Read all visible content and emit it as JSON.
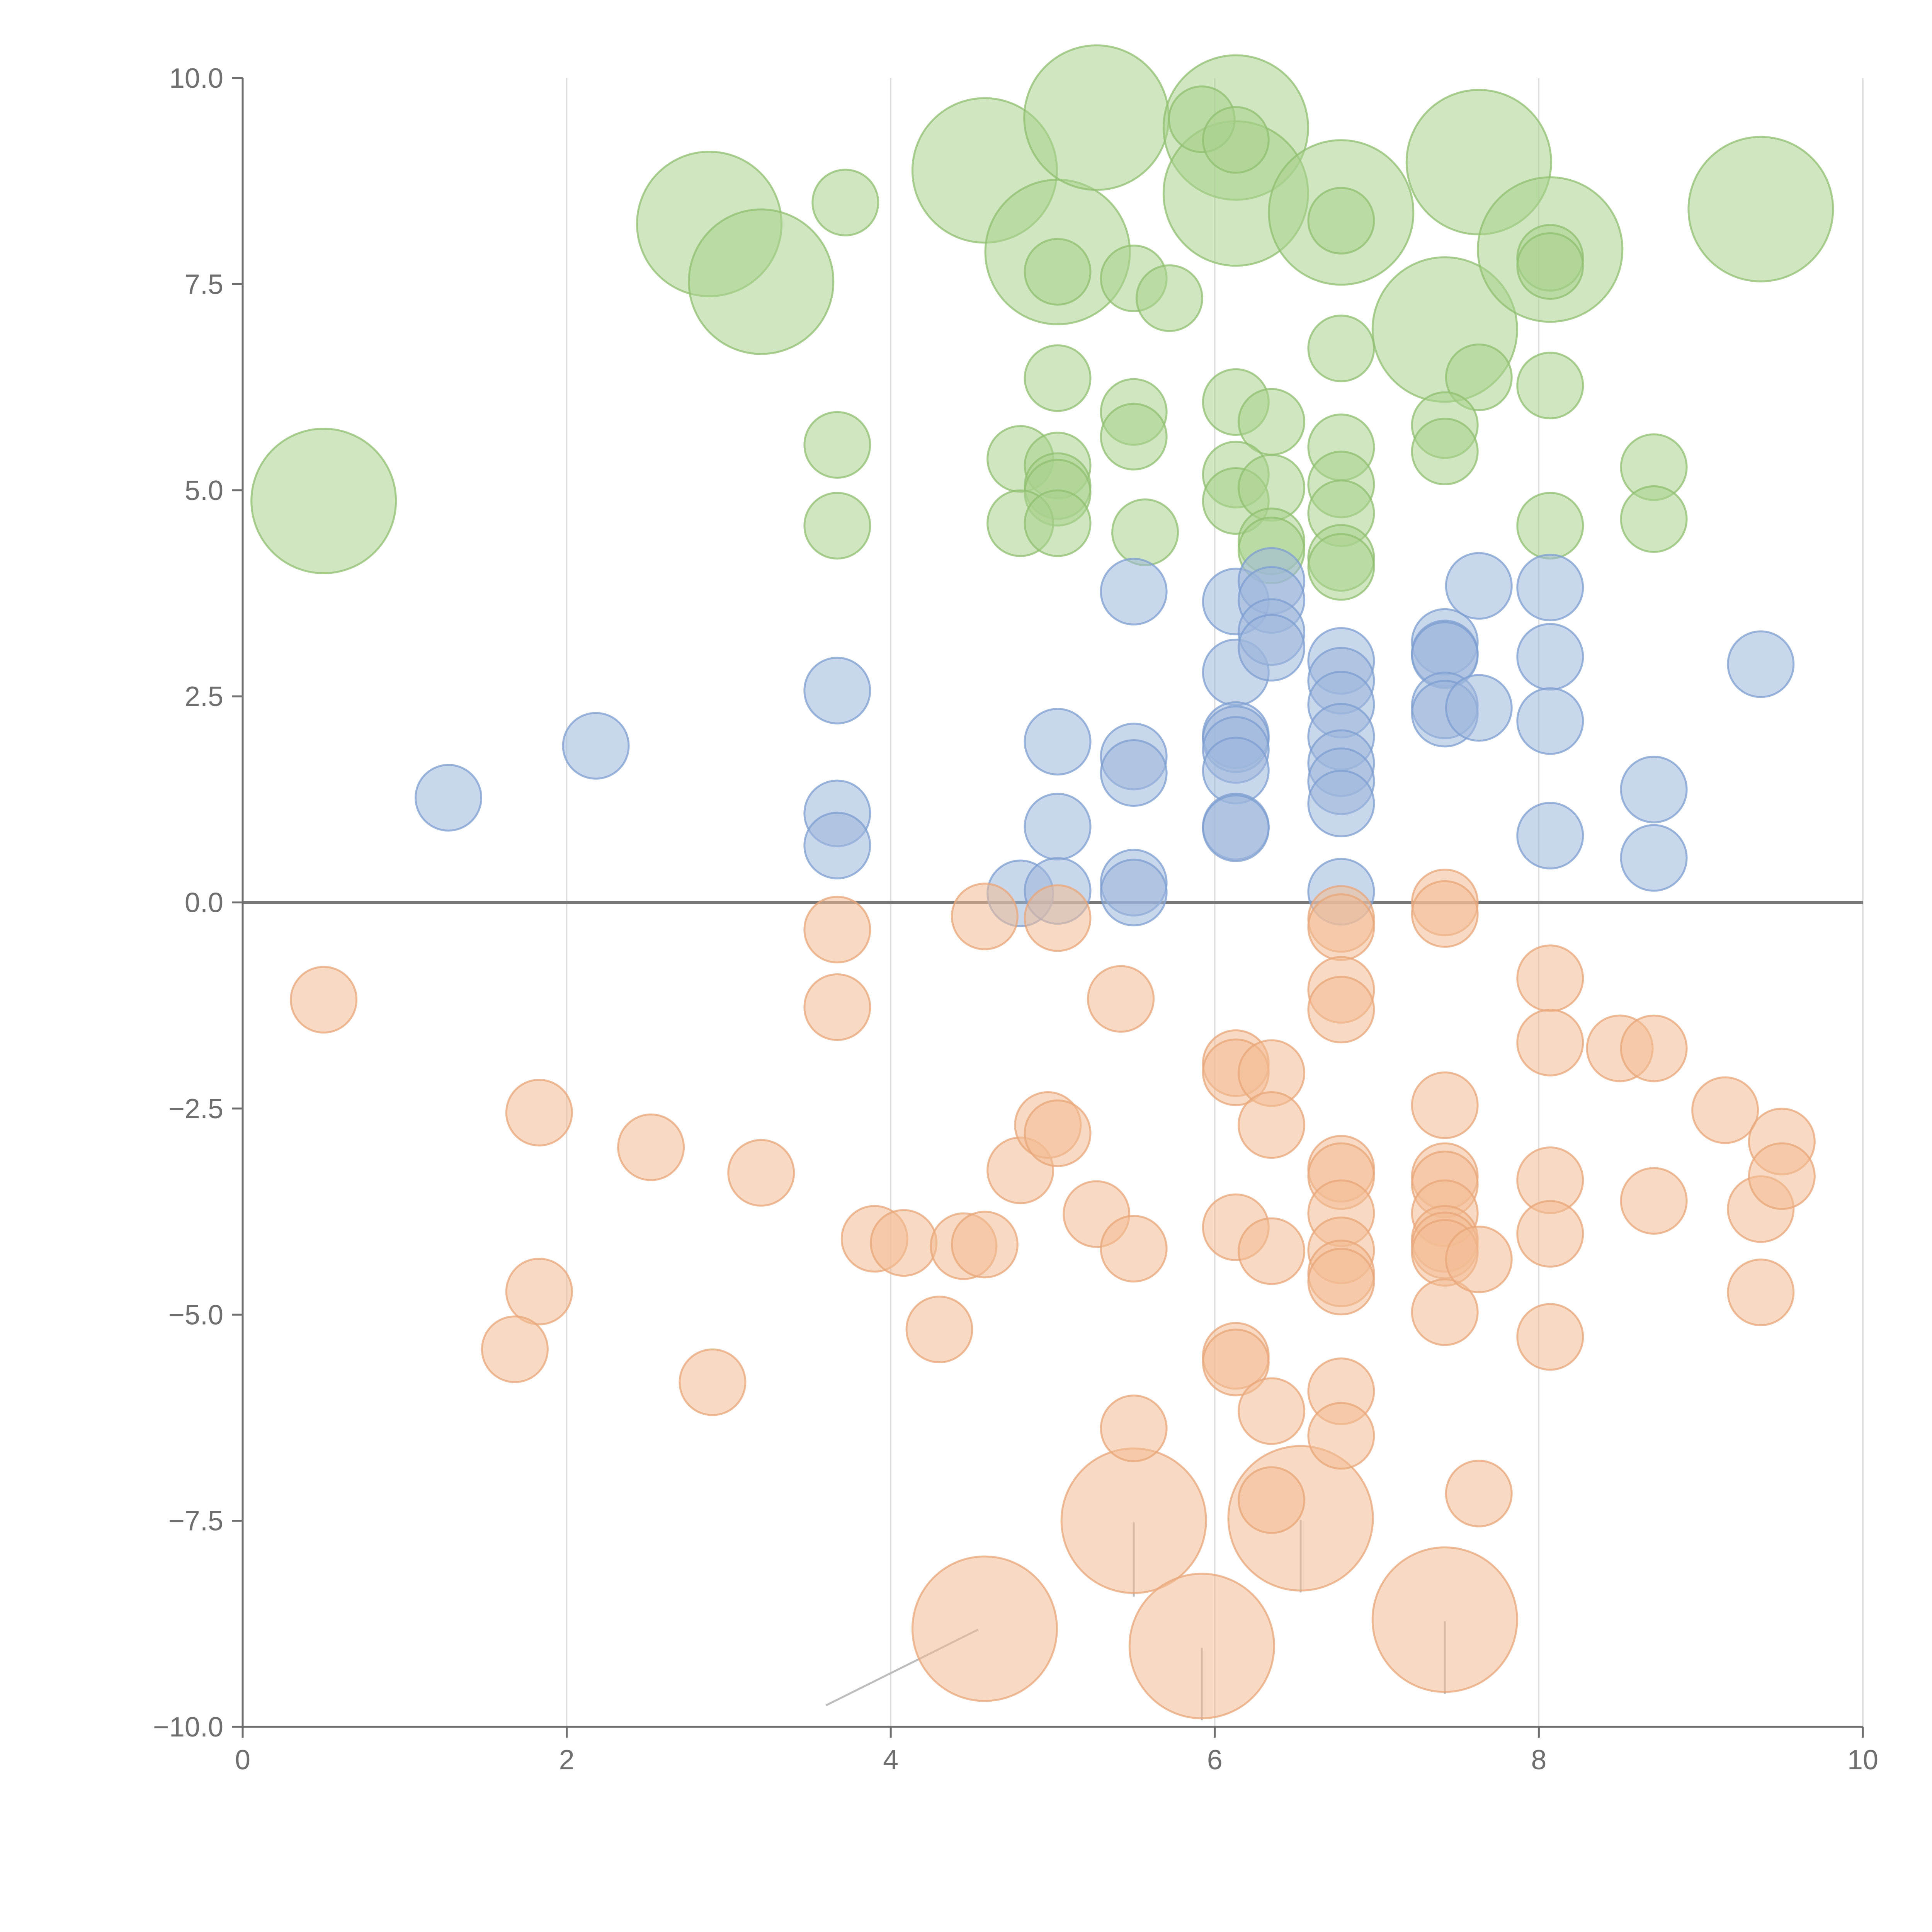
{
  "chart_data": {
    "type": "scatter",
    "title": "",
    "xlabel": "",
    "ylabel": "",
    "xlim": [
      0,
      10
    ],
    "ylim": [
      -10,
      10
    ],
    "x_ticks": [
      0,
      2,
      4,
      6,
      8,
      10
    ],
    "y_ticks": [
      -10,
      -7.5,
      -5,
      -2.5,
      0,
      2.5,
      5,
      7.5,
      10
    ],
    "x_tick_labels": [
      "0",
      "2",
      "4",
      "6",
      "8",
      "10"
    ],
    "y_tick_labels": [
      "−10.0",
      "−7.5",
      "−5.0",
      "−2.5",
      "0.0",
      "2.5",
      "5.0",
      "7.5",
      "10.0"
    ],
    "grid": "vertical",
    "zero_line": true,
    "legend": "none",
    "bubble_sizes": {
      "small": 1,
      "large": 2.2
    },
    "series": [
      {
        "color": "#a9d18e",
        "stroke": "#8fbf6f",
        "points": [
          [
            0.5,
            4.87,
            2.2
          ],
          [
            2.88,
            8.23,
            2.2
          ],
          [
            3.2,
            7.53,
            2.2
          ],
          [
            4.58,
            8.88,
            2.2
          ],
          [
            5.03,
            7.89,
            2.2
          ],
          [
            5.27,
            9.52,
            2.2
          ],
          [
            6.13,
            9.4,
            2.2
          ],
          [
            6.13,
            8.6,
            2.2
          ],
          [
            6.78,
            8.37,
            2.2
          ],
          [
            7.42,
            6.95,
            2.2
          ],
          [
            7.63,
            8.98,
            2.2
          ],
          [
            8.07,
            7.92,
            2.2
          ],
          [
            9.37,
            8.41,
            2.2
          ],
          [
            3.72,
            8.49,
            1
          ],
          [
            5.92,
            9.5,
            1
          ],
          [
            5.03,
            7.65,
            1
          ],
          [
            5.5,
            7.57,
            1
          ],
          [
            5.72,
            7.33,
            1
          ],
          [
            6.13,
            9.25,
            1
          ],
          [
            6.78,
            8.27,
            1
          ],
          [
            6.78,
            6.72,
            1
          ],
          [
            7.63,
            6.37,
            1
          ],
          [
            8.07,
            7.82,
            1
          ],
          [
            8.07,
            7.72,
            1
          ],
          [
            8.07,
            6.27,
            1
          ],
          [
            5.03,
            6.36,
            1
          ],
          [
            6.13,
            6.07,
            1
          ],
          [
            6.35,
            5.83,
            1
          ],
          [
            3.67,
            5.55,
            1
          ],
          [
            5.5,
            5.95,
            1
          ],
          [
            5.5,
            5.65,
            1
          ],
          [
            4.8,
            5.38,
            1
          ],
          [
            5.03,
            5.3,
            1
          ],
          [
            5.03,
            5.05,
            1
          ],
          [
            5.03,
            4.97,
            1
          ],
          [
            6.13,
            5.19,
            1
          ],
          [
            6.13,
            4.87,
            1
          ],
          [
            6.35,
            5.03,
            1
          ],
          [
            6.78,
            5.52,
            1
          ],
          [
            6.78,
            5.07,
            1
          ],
          [
            6.78,
            4.72,
            1
          ],
          [
            7.42,
            5.79,
            1
          ],
          [
            7.42,
            5.47,
            1
          ],
          [
            3.67,
            4.57,
            1
          ],
          [
            4.8,
            4.6,
            1
          ],
          [
            5.03,
            4.6,
            1
          ],
          [
            5.57,
            4.49,
            1
          ],
          [
            6.35,
            4.38,
            1
          ],
          [
            6.35,
            4.27,
            1
          ],
          [
            6.78,
            4.18,
            1
          ],
          [
            6.78,
            4.07,
            1
          ],
          [
            8.07,
            4.57,
            1
          ],
          [
            8.71,
            5.28,
            1
          ],
          [
            8.71,
            4.65,
            1
          ]
        ]
      },
      {
        "color": "#9db6dc",
        "stroke": "#7c9dd0",
        "points": [
          [
            1.27,
            1.27,
            1
          ],
          [
            2.18,
            1.9,
            1
          ],
          [
            3.67,
            2.57,
            1
          ],
          [
            3.67,
            1.08,
            1
          ],
          [
            3.67,
            0.69,
            1
          ],
          [
            4.8,
            0.11,
            1
          ],
          [
            5.03,
            1.95,
            1
          ],
          [
            5.03,
            0.92,
            1
          ],
          [
            5.03,
            0.14,
            1
          ],
          [
            5.5,
            3.77,
            1
          ],
          [
            5.5,
            1.77,
            1
          ],
          [
            5.5,
            1.57,
            1
          ],
          [
            5.5,
            0.24,
            1
          ],
          [
            5.5,
            0.12,
            1
          ],
          [
            6.13,
            3.65,
            1
          ],
          [
            6.13,
            2.79,
            1
          ],
          [
            6.13,
            2.03,
            1
          ],
          [
            6.13,
            1.98,
            1
          ],
          [
            6.13,
            1.85,
            1
          ],
          [
            6.13,
            1.6,
            1
          ],
          [
            6.13,
            0.92,
            1
          ],
          [
            6.13,
            0.9,
            1
          ],
          [
            6.35,
            3.9,
            1
          ],
          [
            6.35,
            3.67,
            1
          ],
          [
            6.35,
            3.28,
            1
          ],
          [
            6.35,
            3.09,
            1
          ],
          [
            6.78,
            2.93,
            1
          ],
          [
            6.78,
            2.69,
            1
          ],
          [
            6.78,
            2.4,
            1
          ],
          [
            6.78,
            2.01,
            1
          ],
          [
            6.78,
            1.69,
            1
          ],
          [
            6.78,
            1.47,
            1
          ],
          [
            6.78,
            1.2,
            1
          ],
          [
            6.78,
            0.13,
            1
          ],
          [
            7.42,
            3.16,
            1
          ],
          [
            7.42,
            3.02,
            1
          ],
          [
            7.42,
            3.0,
            1
          ],
          [
            7.42,
            2.39,
            1
          ],
          [
            7.42,
            2.29,
            1
          ],
          [
            7.63,
            3.84,
            1
          ],
          [
            7.63,
            2.36,
            1
          ],
          [
            8.07,
            3.82,
            1
          ],
          [
            8.07,
            2.98,
            1
          ],
          [
            8.07,
            2.2,
            1
          ],
          [
            8.07,
            0.81,
            1
          ],
          [
            8.71,
            1.37,
            1
          ],
          [
            8.71,
            0.54,
            1
          ],
          [
            9.37,
            2.89,
            1
          ]
        ]
      },
      {
        "color": "#f2bc93",
        "stroke": "#e8a678",
        "points": [
          [
            4.58,
            -8.81,
            2.2
          ],
          [
            5.5,
            -7.5,
            2.2
          ],
          [
            5.92,
            -9.02,
            2.2
          ],
          [
            6.53,
            -7.47,
            2.2
          ],
          [
            7.42,
            -8.7,
            2.2
          ],
          [
            0.5,
            -1.18,
            1
          ],
          [
            1.83,
            -2.55,
            1
          ],
          [
            1.83,
            -4.72,
            1
          ],
          [
            1.68,
            -5.42,
            1
          ],
          [
            2.52,
            -2.97,
            1
          ],
          [
            2.9,
            -5.82,
            1
          ],
          [
            3.2,
            -3.28,
            1
          ],
          [
            3.67,
            -0.33,
            1
          ],
          [
            3.67,
            -1.27,
            1
          ],
          [
            3.9,
            -4.08,
            1
          ],
          [
            4.08,
            -4.13,
            1
          ],
          [
            4.3,
            -5.18,
            1
          ],
          [
            4.45,
            -4.17,
            1
          ],
          [
            4.58,
            -4.15,
            1
          ],
          [
            4.58,
            -0.17,
            1
          ],
          [
            4.8,
            -3.25,
            1
          ],
          [
            4.97,
            -2.7,
            1
          ],
          [
            5.03,
            -2.8,
            1
          ],
          [
            5.03,
            -0.19,
            1
          ],
          [
            5.27,
            -3.78,
            1
          ],
          [
            5.42,
            -1.17,
            1
          ],
          [
            5.5,
            -4.2,
            1
          ],
          [
            5.5,
            -6.38,
            1
          ],
          [
            6.13,
            -1.95,
            1
          ],
          [
            6.13,
            -2.06,
            1
          ],
          [
            6.13,
            -3.94,
            1
          ],
          [
            6.13,
            -5.5,
            1
          ],
          [
            6.13,
            -5.58,
            1
          ],
          [
            6.35,
            -2.07,
            1
          ],
          [
            6.35,
            -2.7,
            1
          ],
          [
            6.35,
            -4.23,
            1
          ],
          [
            6.35,
            -6.17,
            1
          ],
          [
            6.35,
            -7.25,
            1
          ],
          [
            6.78,
            -0.2,
            1
          ],
          [
            6.78,
            -0.3,
            1
          ],
          [
            6.78,
            -1.06,
            1
          ],
          [
            6.78,
            -1.3,
            1
          ],
          [
            6.78,
            -3.23,
            1
          ],
          [
            6.78,
            -3.32,
            1
          ],
          [
            6.78,
            -3.77,
            1
          ],
          [
            6.78,
            -4.22,
            1
          ],
          [
            6.78,
            -4.5,
            1
          ],
          [
            6.78,
            -4.6,
            1
          ],
          [
            6.78,
            -5.93,
            1
          ],
          [
            6.78,
            -6.47,
            1
          ],
          [
            7.42,
            0.0,
            1
          ],
          [
            7.42,
            -0.14,
            1
          ],
          [
            7.42,
            -2.46,
            1
          ],
          [
            7.42,
            -3.32,
            1
          ],
          [
            7.42,
            -3.42,
            1
          ],
          [
            7.42,
            -3.77,
            1
          ],
          [
            7.42,
            -4.08,
            1
          ],
          [
            7.42,
            -4.16,
            1
          ],
          [
            7.42,
            -4.25,
            1
          ],
          [
            7.42,
            -4.97,
            1
          ],
          [
            7.63,
            -4.33,
            1
          ],
          [
            7.63,
            -7.17,
            1
          ],
          [
            8.07,
            -0.92,
            1
          ],
          [
            8.07,
            -1.7,
            1
          ],
          [
            8.07,
            -3.37,
            1
          ],
          [
            8.07,
            -4.02,
            1
          ],
          [
            8.07,
            -5.27,
            1
          ],
          [
            8.5,
            -1.77,
            1
          ],
          [
            8.71,
            -1.77,
            1
          ],
          [
            8.71,
            -3.62,
            1
          ],
          [
            9.15,
            -2.52,
            1
          ],
          [
            9.37,
            -3.72,
            1
          ],
          [
            9.37,
            -4.73,
            1
          ],
          [
            9.5,
            -2.9,
            1
          ],
          [
            9.5,
            -3.32,
            1
          ]
        ]
      }
    ],
    "leaders": [
      [
        [
          4.54,
          -8.82
        ],
        [
          3.6,
          -9.74
        ]
      ],
      [
        [
          5.5,
          -7.52
        ],
        [
          5.5,
          -8.42
        ]
      ],
      [
        [
          5.92,
          -9.04
        ],
        [
          5.92,
          -9.92
        ]
      ],
      [
        [
          6.53,
          -7.49
        ],
        [
          6.53,
          -8.37
        ]
      ],
      [
        [
          7.42,
          -8.72
        ],
        [
          7.42,
          -9.6
        ]
      ]
    ]
  }
}
